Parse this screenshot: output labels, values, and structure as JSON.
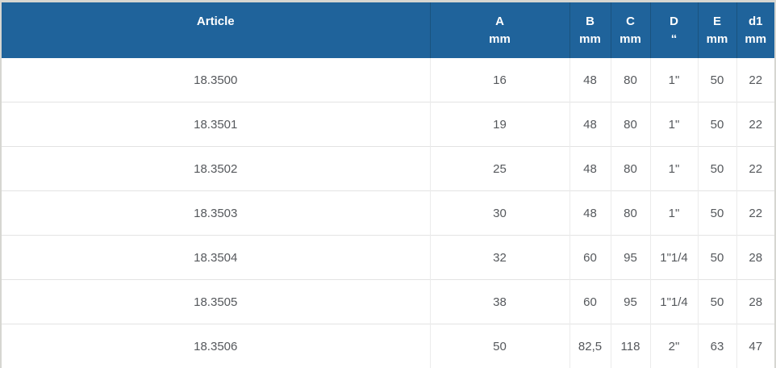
{
  "colors": {
    "page_background": "#d6d6d1",
    "header_background": "#1f639b",
    "header_text": "#ffffff",
    "header_divider": "#1a537f",
    "body_text": "#55585c",
    "row_divider": "#e3e3e3",
    "column_divider": "#ebebeb"
  },
  "table": {
    "columns": [
      {
        "key": "article",
        "label": "Article",
        "unit": ""
      },
      {
        "key": "a_mm",
        "label": "A",
        "unit": "mm"
      },
      {
        "key": "b_mm",
        "label": "B",
        "unit": "mm"
      },
      {
        "key": "c_mm",
        "label": "C",
        "unit": "mm"
      },
      {
        "key": "d_inch",
        "label": "D",
        "unit": "“"
      },
      {
        "key": "e_mm",
        "label": "E",
        "unit": "mm"
      },
      {
        "key": "d1_mm",
        "label": "d1",
        "unit": "mm"
      }
    ],
    "rows": [
      [
        "18.3500",
        "16",
        "48",
        "80",
        "1\"",
        "50",
        "22"
      ],
      [
        "18.3501",
        "19",
        "48",
        "80",
        "1\"",
        "50",
        "22"
      ],
      [
        "18.3502",
        "25",
        "48",
        "80",
        "1\"",
        "50",
        "22"
      ],
      [
        "18.3503",
        "30",
        "48",
        "80",
        "1\"",
        "50",
        "22"
      ],
      [
        "18.3504",
        "32",
        "60",
        "95",
        "1\"1/4",
        "50",
        "28"
      ],
      [
        "18.3505",
        "38",
        "60",
        "95",
        "1\"1/4",
        "50",
        "28"
      ],
      [
        "18.3506",
        "50",
        "82,5",
        "118",
        "2\"",
        "63",
        "47"
      ]
    ]
  }
}
